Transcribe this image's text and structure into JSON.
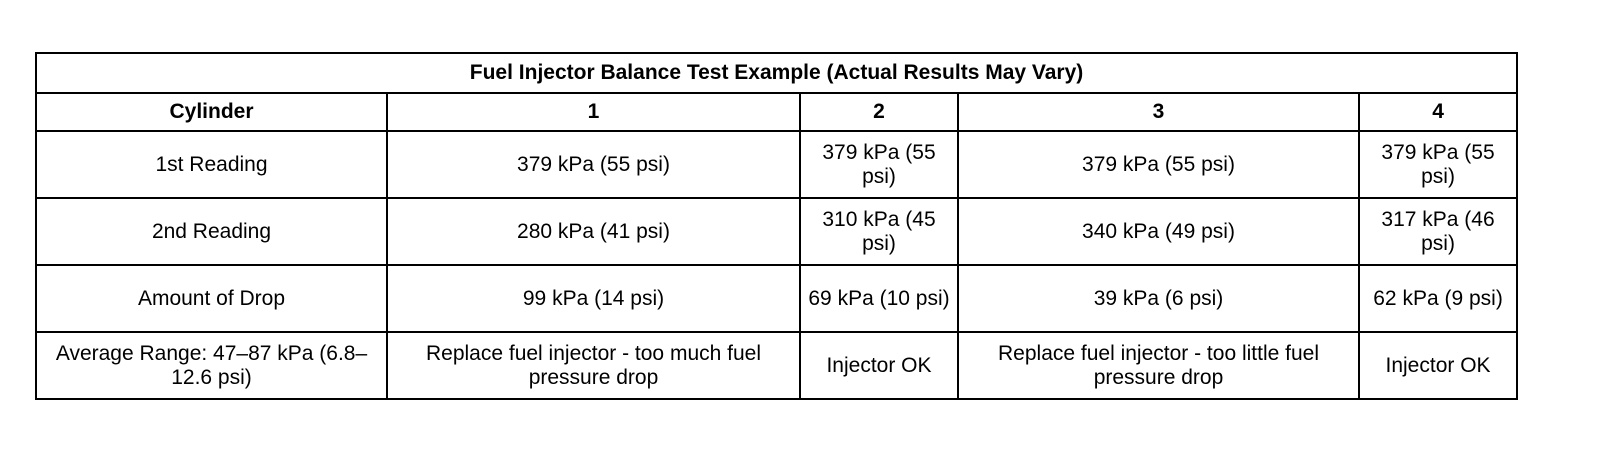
{
  "table": {
    "title": "Fuel Injector Balance Test Example (Actual Results May Vary)",
    "columns": [
      "Cylinder",
      "1",
      "2",
      "3",
      "4"
    ],
    "rows": [
      [
        "1st Reading",
        "379 kPa (55 psi)",
        "379 kPa (55 psi)",
        "379 kPa (55 psi)",
        "379 kPa (55 psi)"
      ],
      [
        "2nd Reading",
        "280 kPa (41 psi)",
        "310 kPa (45 psi)",
        "340 kPa (49 psi)",
        "317 kPa (46 psi)"
      ],
      [
        "Amount of Drop",
        "99 kPa (14 psi)",
        "69 kPa (10 psi)",
        "39 kPa (6 psi)",
        "62 kPa (9 psi)"
      ],
      [
        "Average Range: 47–87 kPa (6.8–12.6 psi)",
        "Replace fuel injector - too much fuel pressure drop",
        "Injector OK",
        "Replace fuel injector - too little fuel pressure drop",
        "Injector OK"
      ]
    ]
  }
}
